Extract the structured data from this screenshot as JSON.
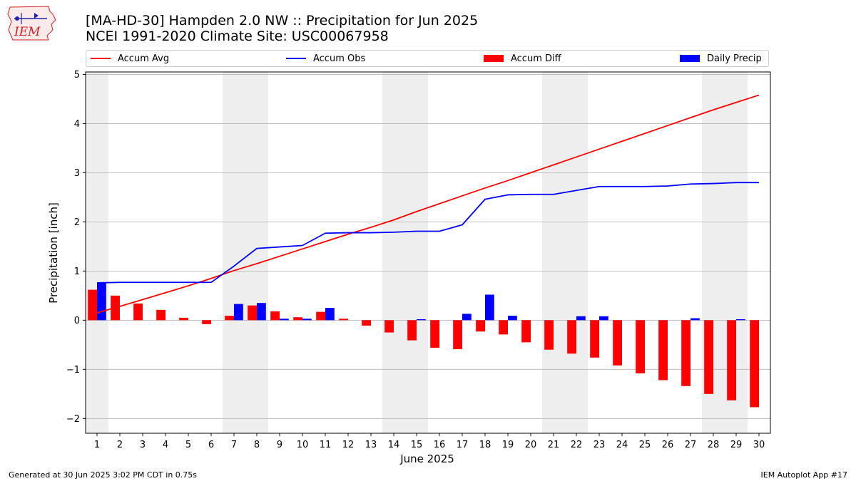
{
  "header": {
    "title_line1": "[MA-HD-30] Hampden 2.0 NW :: Precipitation for Jun 2025",
    "title_line2": "NCEI 1991-2020 Climate Site: USC00067958"
  },
  "logo": {
    "text": "IEM",
    "icon": "iowa-map-weather-logo-icon",
    "color": "#cc2222"
  },
  "footer": {
    "left": "Generated at 30 Jun 2025 3:02 PM CDT in 0.75s",
    "right": "IEM Autoplot App #17"
  },
  "chart_data": {
    "type": "bar",
    "xlabel": "June 2025",
    "ylabel": "Precipitation [inch]",
    "ylim": [
      -2.3,
      5.05
    ],
    "xlim": [
      0.5,
      30.5
    ],
    "yticks": [
      -2,
      -1,
      0,
      1,
      2,
      3,
      4,
      5
    ],
    "ytick_labels": [
      "−2",
      "−1",
      "0",
      "1",
      "2",
      "3",
      "4",
      "5"
    ],
    "days": [
      1,
      2,
      3,
      4,
      5,
      6,
      7,
      8,
      9,
      10,
      11,
      12,
      13,
      14,
      15,
      16,
      17,
      18,
      19,
      20,
      21,
      22,
      23,
      24,
      25,
      26,
      27,
      28,
      29,
      30
    ],
    "weekend_spans": [
      [
        0.5,
        1.5
      ],
      [
        6.5,
        8.5
      ],
      [
        13.5,
        15.5
      ],
      [
        20.5,
        22.5
      ],
      [
        27.5,
        29.5
      ]
    ],
    "grid": "y",
    "legend_position": "top",
    "colors": {
      "accum_avg": "#ff0000",
      "accum_obs": "#0000ff",
      "accum_diff": "#ff0000",
      "daily_precip": "#0000ff",
      "weekend": "#eeeeee",
      "grid": "#b0b0b0"
    },
    "series": [
      {
        "name": "Accum Avg",
        "kind": "line",
        "values": [
          0.15,
          0.28,
          0.42,
          0.56,
          0.7,
          0.85,
          1.01,
          1.15,
          1.3,
          1.45,
          1.6,
          1.75,
          1.89,
          2.04,
          2.21,
          2.37,
          2.53,
          2.69,
          2.84,
          3.0,
          3.16,
          3.32,
          3.48,
          3.64,
          3.8,
          3.96,
          4.12,
          4.28,
          4.43,
          4.58
        ]
      },
      {
        "name": "Accum Obs",
        "kind": "line",
        "values": [
          0.76,
          0.77,
          0.77,
          0.77,
          0.77,
          0.77,
          1.1,
          1.46,
          1.49,
          1.52,
          1.77,
          1.78,
          1.78,
          1.79,
          1.81,
          1.81,
          1.94,
          2.46,
          2.55,
          2.56,
          2.56,
          2.64,
          2.72,
          2.72,
          2.72,
          2.73,
          2.77,
          2.78,
          2.8,
          2.8
        ]
      },
      {
        "name": "Accum Diff",
        "kind": "bar",
        "values": [
          0.62,
          0.5,
          0.34,
          0.21,
          0.05,
          -0.08,
          0.09,
          0.3,
          0.18,
          0.06,
          0.17,
          0.03,
          -0.11,
          -0.25,
          -0.41,
          -0.56,
          -0.59,
          -0.23,
          -0.29,
          -0.45,
          -0.6,
          -0.68,
          -0.76,
          -0.92,
          -1.08,
          -1.22,
          -1.34,
          -1.5,
          -1.63,
          -1.77
        ]
      },
      {
        "name": "Daily Precip",
        "kind": "bar",
        "values": [
          0.76,
          0.0,
          0.0,
          0.0,
          0.0,
          0.0,
          0.33,
          0.35,
          0.03,
          0.03,
          0.25,
          0.0,
          0.0,
          0.0,
          0.02,
          0.0,
          0.13,
          0.52,
          0.09,
          0.0,
          0.0,
          0.08,
          0.08,
          0.0,
          0.0,
          0.0,
          0.04,
          0.0,
          0.02,
          0.0
        ]
      }
    ]
  }
}
